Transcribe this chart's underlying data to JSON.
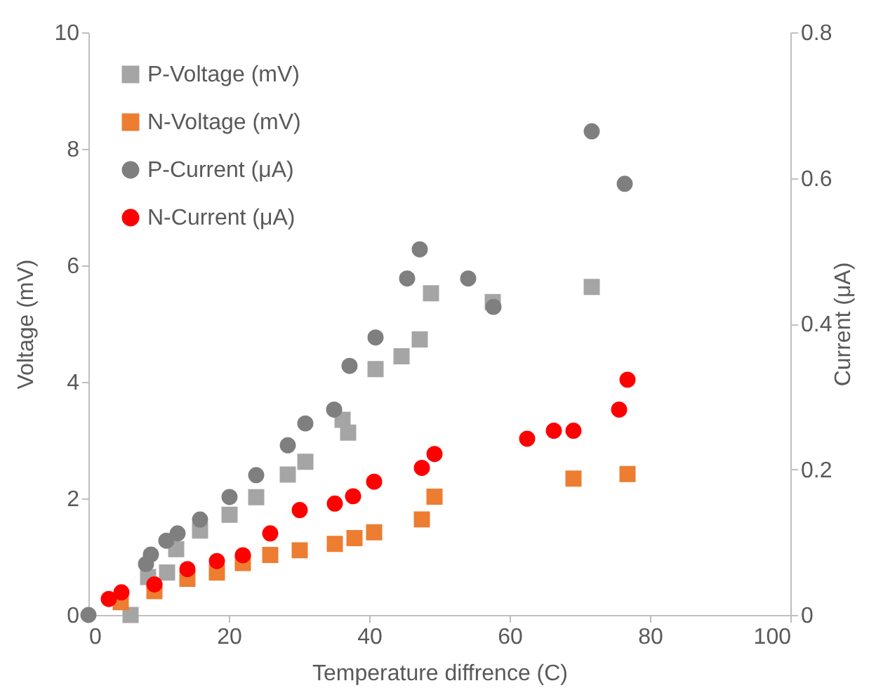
{
  "chart_data": {
    "type": "scatter",
    "xlabel": "Temperature diffrence (C)",
    "ylabel": "Voltage (mV)",
    "y2label": "Current (μA)",
    "xlim": [
      0,
      100
    ],
    "xticks": [
      0,
      20,
      40,
      60,
      80,
      100
    ],
    "ylim": [
      0,
      10
    ],
    "yticks": [
      0,
      2,
      4,
      6,
      8,
      10
    ],
    "y2lim": [
      0,
      0.8
    ],
    "y2ticks": [
      0,
      0.2,
      0.4,
      0.6,
      0.8
    ],
    "grid": false,
    "legend": "top left",
    "series": [
      {
        "name": "P-Voltage (mV)",
        "color": "#a5a5a5",
        "marker": "square",
        "x": [
          6,
          8.5,
          11.2,
          12.5,
          15.9,
          20.1,
          23.9,
          28.4,
          30.9,
          36.2,
          37,
          40.9,
          44.6,
          47.2,
          48.8,
          57.6,
          71.7
        ],
        "values": [
          0,
          0.65,
          0.73,
          1.13,
          1.45,
          1.72,
          2.02,
          2.41,
          2.63,
          3.35,
          3.13,
          4.22,
          4.44,
          4.73,
          5.52,
          5.37,
          5.63
        ]
      },
      {
        "name": "N-Voltage (mV)",
        "color": "#ed7d31",
        "marker": "square",
        "x": [
          4.6,
          9.4,
          14.1,
          18.3,
          22,
          25.9,
          30.1,
          35.1,
          37.9,
          40.7,
          47.5,
          49.3,
          69.1,
          76.8
        ],
        "values": [
          0.22,
          0.41,
          0.62,
          0.73,
          0.89,
          1.03,
          1.11,
          1.22,
          1.32,
          1.42,
          1.64,
          2.03,
          2.34,
          2.42
        ]
      },
      {
        "name": "P-Current (μA)",
        "color": "#7f7f7f",
        "marker": "circle",
        "axis": "y2",
        "x": [
          0,
          8.2,
          8.9,
          11.1,
          12.7,
          15.9,
          20.1,
          23.9,
          28.4,
          30.9,
          35,
          37.2,
          40.9,
          45.4,
          47.2,
          54.1,
          57.7,
          71.7,
          76.4
        ],
        "values": [
          0,
          0.07,
          0.083,
          0.102,
          0.112,
          0.131,
          0.162,
          0.192,
          0.233,
          0.263,
          0.282,
          0.342,
          0.381,
          0.462,
          0.502,
          0.462,
          0.423,
          0.664,
          0.592
        ]
      },
      {
        "name": "N-Current (μA)",
        "color": "#ff0000",
        "marker": "circle",
        "axis": "y2",
        "x": [
          2.9,
          4.7,
          9.4,
          14.1,
          18.3,
          22,
          25.9,
          30.1,
          35.1,
          37.7,
          40.7,
          47.5,
          49.3,
          62.5,
          66.3,
          69.1,
          75.6,
          76.8
        ],
        "values": [
          0.022,
          0.031,
          0.042,
          0.063,
          0.074,
          0.082,
          0.112,
          0.144,
          0.153,
          0.163,
          0.183,
          0.202,
          0.221,
          0.242,
          0.253,
          0.253,
          0.282,
          0.323
        ]
      }
    ]
  }
}
